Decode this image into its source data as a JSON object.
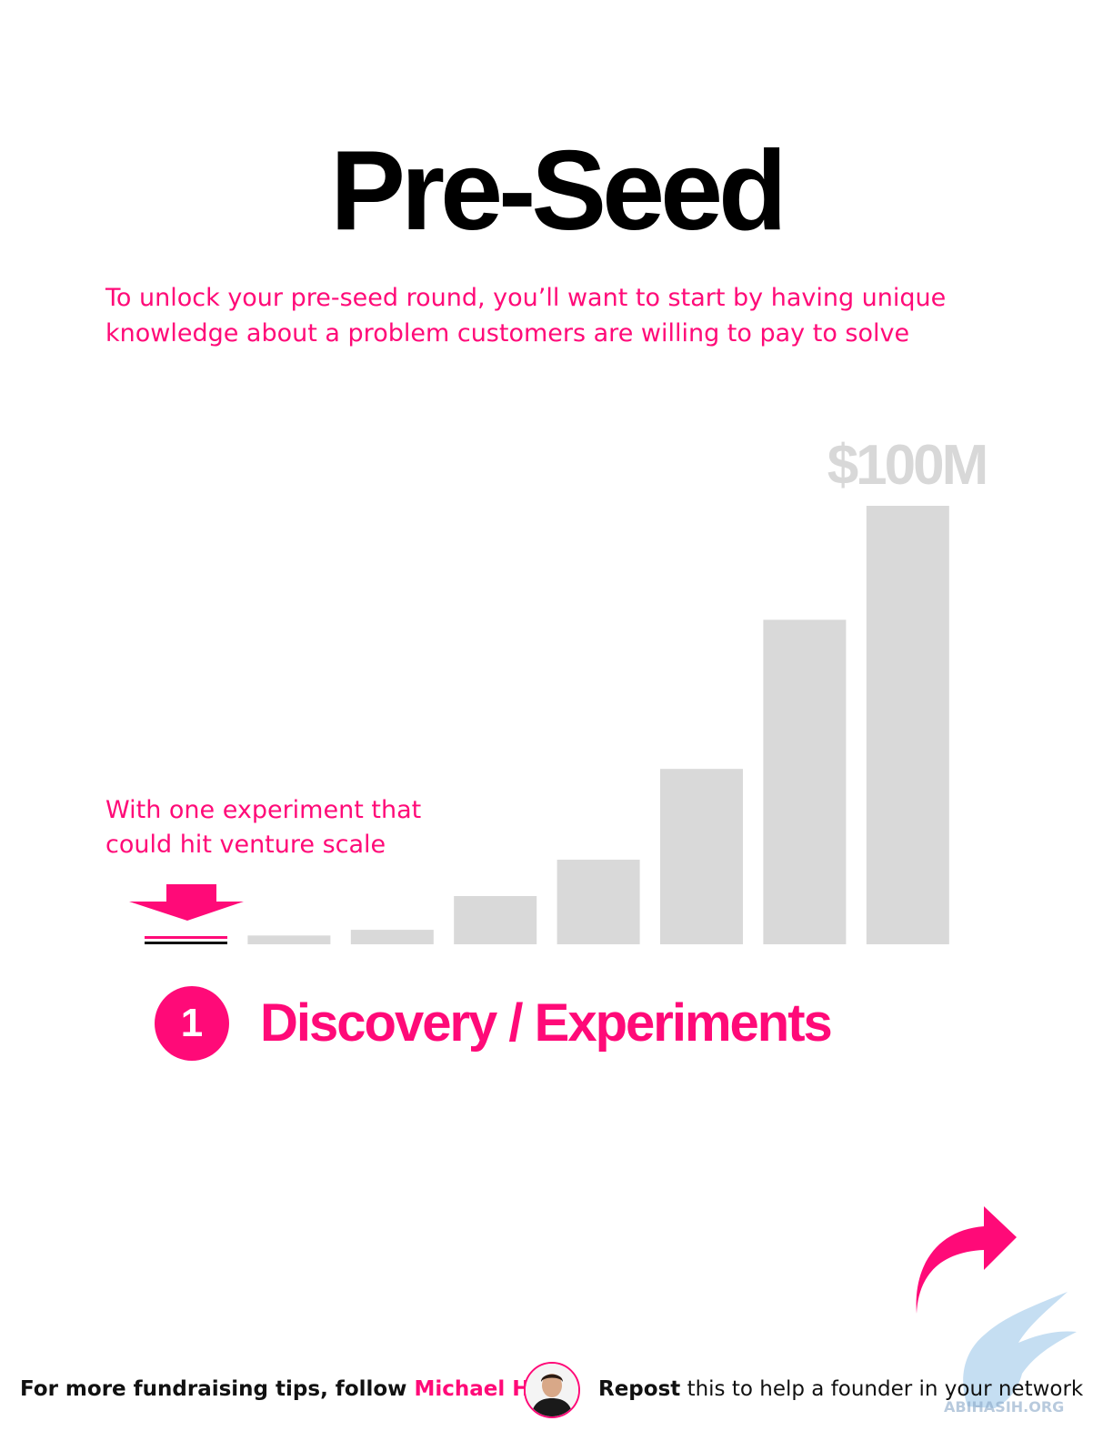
{
  "header": {
    "title": "Pre-Seed",
    "subtitle": "To unlock your pre-seed round, you’ll want to start by having unique knowledge about a problem customers are willing to pay to solve"
  },
  "annotation": "With one experiment that could hit venture scale",
  "chart_data": {
    "type": "bar",
    "top_label": "$100M",
    "values": [
      0.0,
      0.02,
      0.033,
      0.11,
      0.193,
      0.4,
      0.74,
      1.0
    ],
    "highlight_index": 0,
    "colors": {
      "bar": "#d9d9d9",
      "accent": "#ff0a78",
      "baseline": "#111111"
    }
  },
  "step": {
    "number": "1",
    "label": "Discovery / Experiments"
  },
  "footer": {
    "follow_prefix": "For more fundraising tips, follow ",
    "follow_name": "Michael Ho",
    "repost_bold": "Repost",
    "repost_rest": " this to help a founder in your network"
  },
  "icons": {
    "pointer": "down-arrow-icon",
    "share": "curved-share-arrow-icon",
    "avatar": "profile-photo"
  },
  "colors": {
    "accent": "#ff0a78",
    "text": "#111111",
    "muted": "#d8d8d8"
  }
}
